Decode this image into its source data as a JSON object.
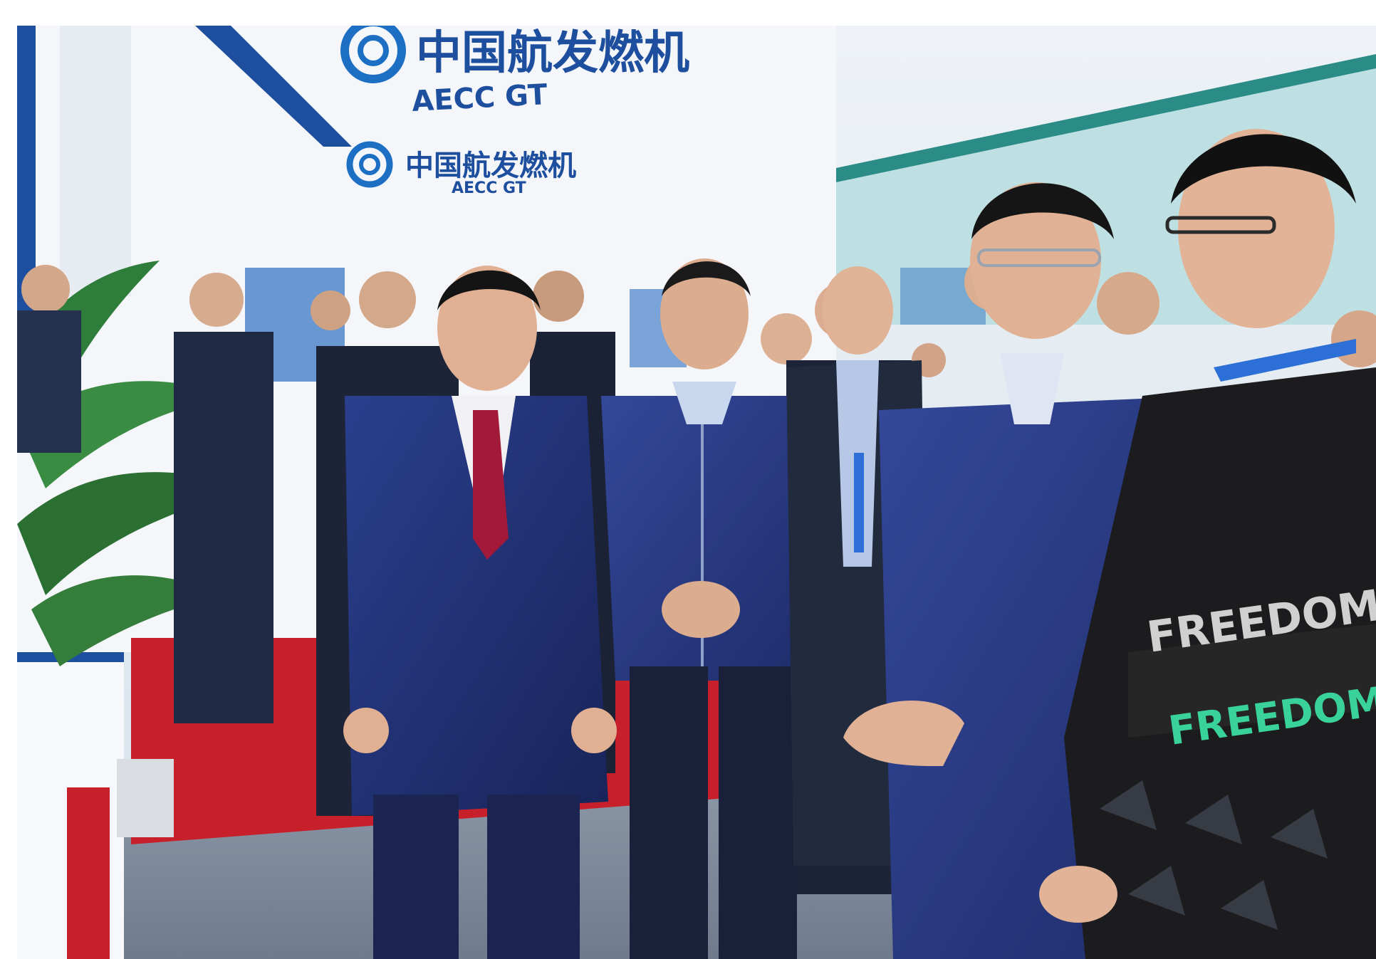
{
  "photo": {
    "scene": "exhibition-booth-visit",
    "signage": {
      "top_sign_cn": "中国航发燃机",
      "top_sign_en": "AECC GT",
      "banner_sign_cn": "中国航发燃机",
      "banner_sign_en": "AECC GT"
    },
    "sweater_text": [
      "FREEDOM",
      "FREEDOM"
    ],
    "colors": {
      "booth_white": "#f5f7fb",
      "brand_blue": "#1d4f9e",
      "wall_teal": "#b9dde0",
      "stripe_teal": "#2b8c87",
      "carpet_red": "#c8202a",
      "floor_gray": "#7f8c9d",
      "suit_navy": "#1f2d6b",
      "jacket_navy": "#2a3d7d",
      "plant_green": "#2f7d3a",
      "sweater_black": "#1c1c1e",
      "sweater_green": "#38d29a"
    }
  }
}
